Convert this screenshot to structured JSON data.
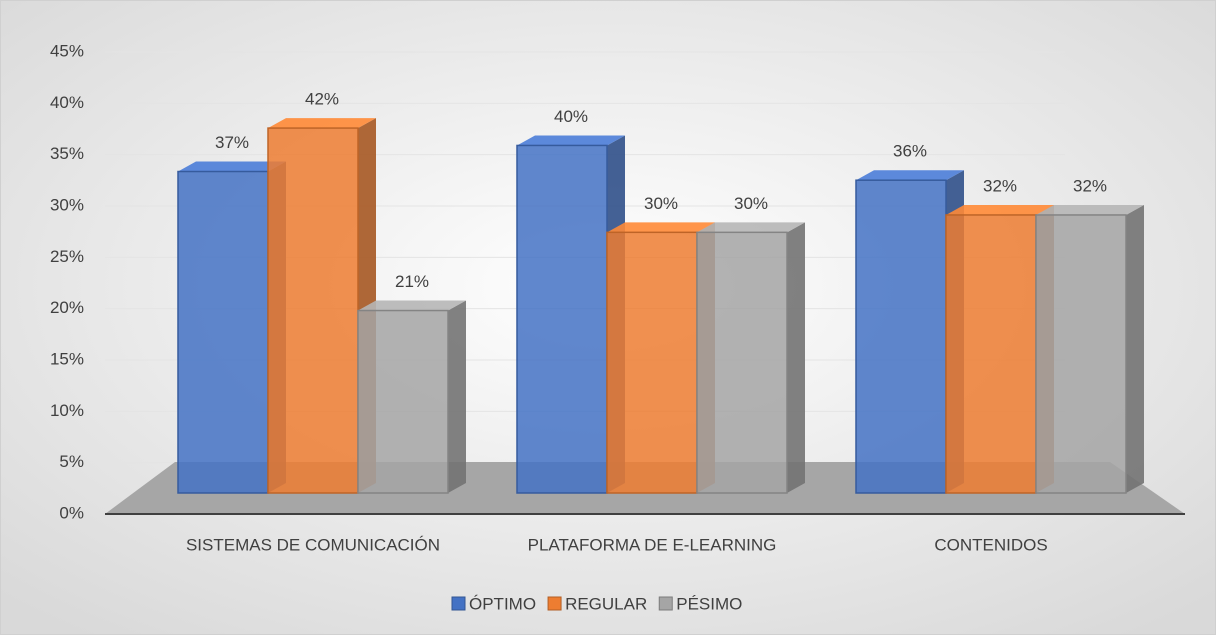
{
  "chart_data": {
    "type": "bar3d",
    "categories": [
      "SISTEMAS DE COMUNICACIÓN",
      "PLATAFORMA DE E-LEARNING",
      "CONTENIDOS"
    ],
    "series": [
      {
        "name": "ÓPTIMO",
        "color": "#4472c4",
        "values": [
          37,
          40,
          36
        ],
        "value_labels": [
          "37%",
          "40%",
          "36%"
        ]
      },
      {
        "name": "REGULAR",
        "color": "#ed7d31",
        "values": [
          42,
          30,
          32
        ],
        "value_labels": [
          "42%",
          "30%",
          "32%"
        ]
      },
      {
        "name": "PÉSIMO",
        "color": "#a5a5a5",
        "values": [
          21,
          30,
          32
        ],
        "value_labels": [
          "21%",
          "30%",
          "32%"
        ]
      }
    ],
    "ylim": [
      0,
      45
    ],
    "yticks": [
      {
        "value": 0,
        "label": "0%"
      },
      {
        "value": 5,
        "label": "5%"
      },
      {
        "value": 10,
        "label": "10%"
      },
      {
        "value": 15,
        "label": "15%"
      },
      {
        "value": 20,
        "label": "20%"
      },
      {
        "value": 25,
        "label": "25%"
      },
      {
        "value": 30,
        "label": "30%"
      },
      {
        "value": 35,
        "label": "35%"
      },
      {
        "value": 40,
        "label": "40%"
      },
      {
        "value": 45,
        "label": "45%"
      }
    ],
    "grid": true,
    "legend": "bottom"
  }
}
